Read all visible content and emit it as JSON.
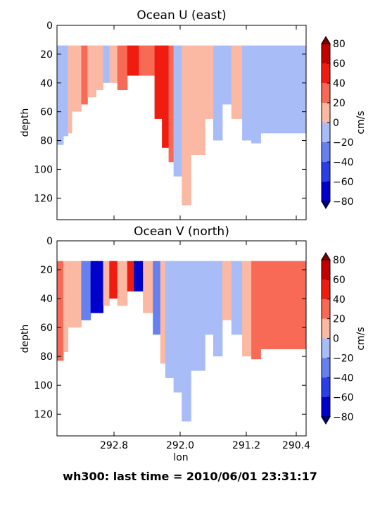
{
  "figure": {
    "footer": "wh300: last time = 2010/06/01 23:31:17"
  },
  "chart_data": [
    {
      "type": "heatmap",
      "title": "Ocean U (east)",
      "ylabel": "depth",
      "xlabel": "",
      "ylim": [
        135,
        0
      ],
      "y_ticks": [
        "0",
        "20",
        "40",
        "60",
        "80",
        "100",
        "120"
      ],
      "x_ticks": [
        "292.8",
        "292.0",
        "291.2",
        "290.4"
      ],
      "colorbar": {
        "label": "cm/s",
        "ticks": [
          "80",
          "60",
          "40",
          "20",
          "0",
          "−20",
          "−40",
          "−60",
          "−80"
        ],
        "levels": [
          -80,
          -60,
          -40,
          -20,
          0,
          20,
          40,
          60,
          80
        ],
        "colors": [
          "#0000cc",
          "#2b3fe8",
          "#6680f0",
          "#a8bcf8",
          "#fbb9a4",
          "#f86a56",
          "#f01c10",
          "#c40000"
        ]
      },
      "columns": [
        {
          "lon_start": 293.53,
          "lon_end": 293.45,
          "bottom": 83,
          "layers": [
            {
              "from": 14,
              "to": 83,
              "v": -20
            }
          ]
        },
        {
          "lon_start": 293.45,
          "lon_end": 293.39,
          "bottom": 77,
          "layers": [
            {
              "from": 14,
              "to": 77,
              "v": -10
            }
          ]
        },
        {
          "lon_start": 293.39,
          "lon_end": 293.34,
          "bottom": 75,
          "layers": [
            {
              "from": 14,
              "to": 75,
              "v": 10
            }
          ]
        },
        {
          "lon_start": 293.34,
          "lon_end": 293.22,
          "bottom": 60,
          "layers": [
            {
              "from": 14,
              "to": 60,
              "v": 10
            }
          ]
        },
        {
          "lon_start": 293.22,
          "lon_end": 293.14,
          "bottom": 55,
          "layers": [
            {
              "from": 14,
              "to": 55,
              "v": 30
            }
          ]
        },
        {
          "lon_start": 293.14,
          "lon_end": 293.03,
          "bottom": 50,
          "layers": [
            {
              "from": 14,
              "to": 50,
              "v": 10
            }
          ]
        },
        {
          "lon_start": 293.03,
          "lon_end": 292.94,
          "bottom": 45,
          "layers": [
            {
              "from": 14,
              "to": 45,
              "v": 10
            }
          ]
        },
        {
          "lon_start": 292.94,
          "lon_end": 292.86,
          "bottom": 40,
          "layers": [
            {
              "from": 14,
              "to": 40,
              "v": -10
            }
          ]
        },
        {
          "lon_start": 292.86,
          "lon_end": 292.76,
          "bottom": 40,
          "layers": [
            {
              "from": 14,
              "to": 40,
              "v": 10
            }
          ]
        },
        {
          "lon_start": 292.76,
          "lon_end": 292.64,
          "bottom": 45,
          "layers": [
            {
              "from": 14,
              "to": 45,
              "v": 30
            }
          ]
        },
        {
          "lon_start": 292.64,
          "lon_end": 292.5,
          "bottom": 35,
          "layers": [
            {
              "from": 14,
              "to": 35,
              "v": 50
            }
          ]
        },
        {
          "lon_start": 292.5,
          "lon_end": 292.31,
          "bottom": 35,
          "layers": [
            {
              "from": 14,
              "to": 35,
              "v": 30
            }
          ]
        },
        {
          "lon_start": 292.31,
          "lon_end": 292.22,
          "bottom": 65,
          "layers": [
            {
              "from": 14,
              "to": 65,
              "v": 50
            }
          ]
        },
        {
          "lon_start": 292.22,
          "lon_end": 292.14,
          "bottom": 85,
          "layers": [
            {
              "from": 14,
              "to": 85,
              "v": 50
            }
          ]
        },
        {
          "lon_start": 292.14,
          "lon_end": 292.08,
          "bottom": 95,
          "layers": [
            {
              "from": 14,
              "to": 95,
              "v": 30
            }
          ]
        },
        {
          "lon_start": 292.08,
          "lon_end": 291.98,
          "bottom": 105,
          "layers": [
            {
              "from": 14,
              "to": 105,
              "v": -10
            }
          ]
        },
        {
          "lon_start": 291.98,
          "lon_end": 291.87,
          "bottom": 125,
          "layers": [
            {
              "from": 14,
              "to": 125,
              "v": 10
            }
          ]
        },
        {
          "lon_start": 291.87,
          "lon_end": 291.7,
          "bottom": 90,
          "layers": [
            {
              "from": 14,
              "to": 90,
              "v": 10
            }
          ]
        },
        {
          "lon_start": 291.7,
          "lon_end": 291.6,
          "bottom": 65,
          "layers": [
            {
              "from": 14,
              "to": 65,
              "v": 10
            }
          ]
        },
        {
          "lon_start": 291.6,
          "lon_end": 291.49,
          "bottom": 80,
          "layers": [
            {
              "from": 14,
              "to": 80,
              "v": -10
            }
          ]
        },
        {
          "lon_start": 291.49,
          "lon_end": 291.38,
          "bottom": 55,
          "layers": [
            {
              "from": 14,
              "to": 55,
              "v": -10
            }
          ]
        },
        {
          "lon_start": 291.38,
          "lon_end": 291.25,
          "bottom": 65,
          "layers": [
            {
              "from": 14,
              "to": 65,
              "v": 10
            }
          ]
        },
        {
          "lon_start": 291.25,
          "lon_end": 291.12,
          "bottom": 80,
          "layers": [
            {
              "from": 14,
              "to": 80,
              "v": -10
            }
          ]
        },
        {
          "lon_start": 291.12,
          "lon_end": 290.97,
          "bottom": 82,
          "layers": [
            {
              "from": 14,
              "to": 82,
              "v": -10
            }
          ]
        },
        {
          "lon_start": 290.97,
          "lon_end": 290.34,
          "bottom": 75,
          "layers": [
            {
              "from": 14,
              "to": 75,
              "v": -10
            }
          ]
        }
      ]
    },
    {
      "type": "heatmap",
      "title": "Ocean V (north)",
      "ylabel": "depth",
      "xlabel": "lon",
      "ylim": [
        135,
        0
      ],
      "y_ticks": [
        "0",
        "20",
        "40",
        "60",
        "80",
        "100",
        "120"
      ],
      "x_ticks": [
        "292.8",
        "292.0",
        "291.2",
        "290.4"
      ],
      "colorbar": {
        "label": "cm/s",
        "ticks": [
          "80",
          "60",
          "40",
          "20",
          "0",
          "−20",
          "−40",
          "−60",
          "−80"
        ],
        "levels": [
          -80,
          -60,
          -40,
          -20,
          0,
          20,
          40,
          60,
          80
        ],
        "colors": [
          "#0000cc",
          "#2b3fe8",
          "#6680f0",
          "#a8bcf8",
          "#fbb9a4",
          "#f86a56",
          "#f01c10",
          "#c40000"
        ]
      },
      "columns": [
        {
          "lon_start": 293.53,
          "lon_end": 293.45,
          "bottom": 83,
          "layers": [
            {
              "from": 14,
              "to": 83,
              "v": 30
            }
          ]
        },
        {
          "lon_start": 293.45,
          "lon_end": 293.39,
          "bottom": 77,
          "layers": [
            {
              "from": 14,
              "to": 77,
              "v": 10
            }
          ]
        },
        {
          "lon_start": 293.39,
          "lon_end": 293.22,
          "bottom": 60,
          "layers": [
            {
              "from": 14,
              "to": 60,
              "v": 10
            }
          ]
        },
        {
          "lon_start": 293.22,
          "lon_end": 293.1,
          "bottom": 55,
          "layers": [
            {
              "from": 14,
              "to": 55,
              "v": -30
            }
          ]
        },
        {
          "lon_start": 293.1,
          "lon_end": 292.94,
          "bottom": 50,
          "layers": [
            {
              "from": 14,
              "to": 50,
              "v": -70
            }
          ]
        },
        {
          "lon_start": 292.94,
          "lon_end": 292.86,
          "bottom": 45,
          "layers": [
            {
              "from": 14,
              "to": 45,
              "v": 10
            }
          ]
        },
        {
          "lon_start": 292.86,
          "lon_end": 292.76,
          "bottom": 40,
          "layers": [
            {
              "from": 14,
              "to": 40,
              "v": 50
            }
          ]
        },
        {
          "lon_start": 292.76,
          "lon_end": 292.64,
          "bottom": 45,
          "layers": [
            {
              "from": 14,
              "to": 45,
              "v": 10
            }
          ]
        },
        {
          "lon_start": 292.64,
          "lon_end": 292.56,
          "bottom": 35,
          "layers": [
            {
              "from": 14,
              "to": 35,
              "v": 50
            }
          ]
        },
        {
          "lon_start": 292.56,
          "lon_end": 292.45,
          "bottom": 35,
          "layers": [
            {
              "from": 14,
              "to": 35,
              "v": -70
            }
          ]
        },
        {
          "lon_start": 292.45,
          "lon_end": 292.33,
          "bottom": 50,
          "layers": [
            {
              "from": 14,
              "to": 50,
              "v": 10
            }
          ]
        },
        {
          "lon_start": 292.33,
          "lon_end": 292.24,
          "bottom": 65,
          "layers": [
            {
              "from": 14,
              "to": 65,
              "v": -30
            }
          ]
        },
        {
          "lon_start": 292.24,
          "lon_end": 292.18,
          "bottom": 85,
          "layers": [
            {
              "from": 14,
              "to": 85,
              "v": 10
            }
          ]
        },
        {
          "lon_start": 292.18,
          "lon_end": 292.08,
          "bottom": 95,
          "layers": [
            {
              "from": 14,
              "to": 95,
              "v": -10
            }
          ]
        },
        {
          "lon_start": 292.08,
          "lon_end": 291.98,
          "bottom": 105,
          "layers": [
            {
              "from": 14,
              "to": 105,
              "v": -10
            }
          ]
        },
        {
          "lon_start": 291.98,
          "lon_end": 291.87,
          "bottom": 125,
          "layers": [
            {
              "from": 14,
              "to": 125,
              "v": -10
            }
          ]
        },
        {
          "lon_start": 291.87,
          "lon_end": 291.7,
          "bottom": 90,
          "layers": [
            {
              "from": 14,
              "to": 90,
              "v": -10
            }
          ]
        },
        {
          "lon_start": 291.7,
          "lon_end": 291.6,
          "bottom": 65,
          "layers": [
            {
              "from": 14,
              "to": 65,
              "v": -10
            }
          ]
        },
        {
          "lon_start": 291.6,
          "lon_end": 291.49,
          "bottom": 80,
          "layers": [
            {
              "from": 14,
              "to": 80,
              "v": -10
            }
          ]
        },
        {
          "lon_start": 291.49,
          "lon_end": 291.38,
          "bottom": 55,
          "layers": [
            {
              "from": 14,
              "to": 55,
              "v": 10
            }
          ]
        },
        {
          "lon_start": 291.38,
          "lon_end": 291.25,
          "bottom": 65,
          "layers": [
            {
              "from": 14,
              "to": 65,
              "v": -10
            }
          ]
        },
        {
          "lon_start": 291.25,
          "lon_end": 291.12,
          "bottom": 80,
          "layers": [
            {
              "from": 14,
              "to": 80,
              "v": 10
            }
          ]
        },
        {
          "lon_start": 291.12,
          "lon_end": 290.97,
          "bottom": 82,
          "layers": [
            {
              "from": 14,
              "to": 82,
              "v": 30
            }
          ]
        },
        {
          "lon_start": 290.97,
          "lon_end": 290.34,
          "bottom": 75,
          "layers": [
            {
              "from": 14,
              "to": 75,
              "v": 30
            }
          ]
        }
      ]
    }
  ]
}
